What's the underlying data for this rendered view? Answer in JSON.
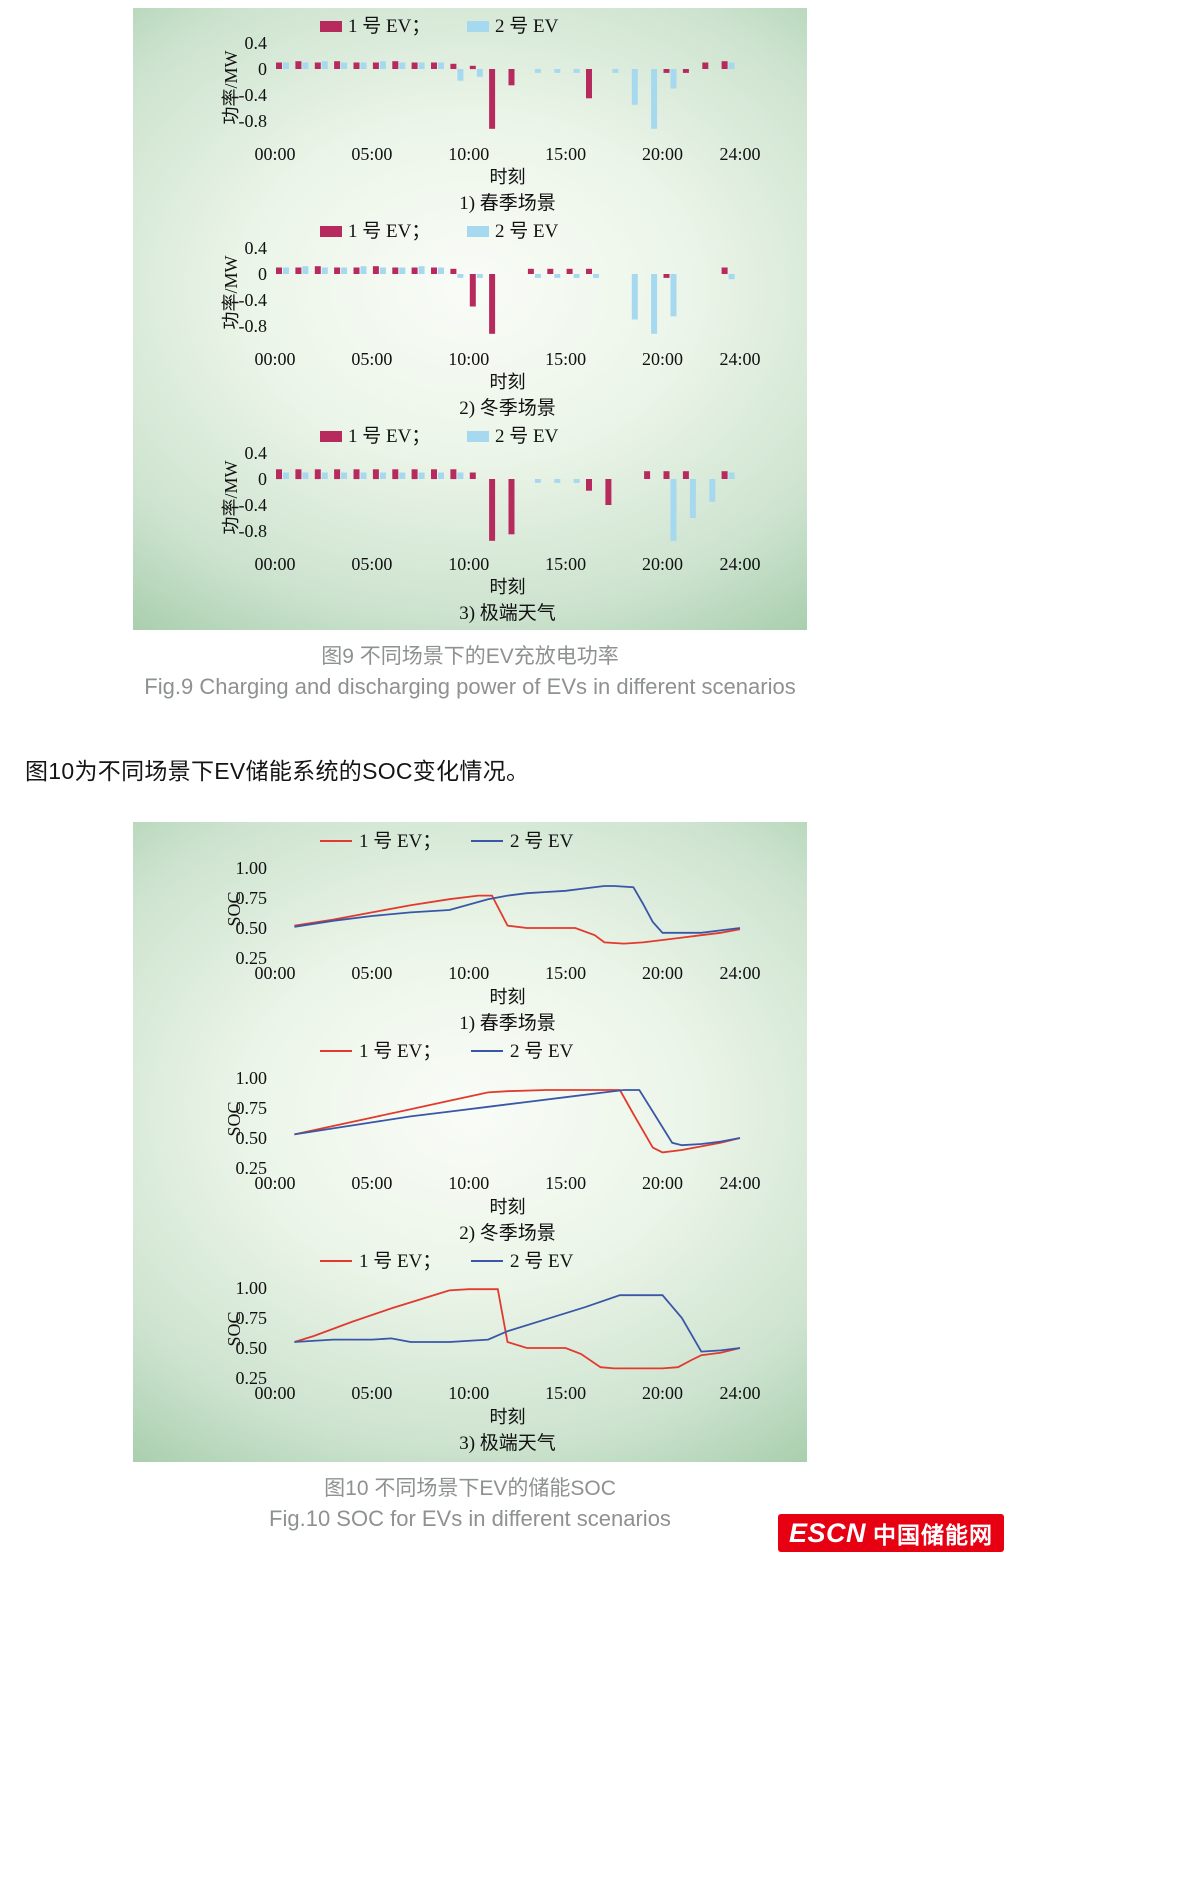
{
  "figure9": {
    "caption_zh": "图9  不同场景下的EV充放电功率",
    "caption_en": "Fig.9  Charging and discharging power of EVs in different scenarios"
  },
  "body_text": "图10为不同场景下EV储能系统的SOC变化情况。",
  "figure10": {
    "caption_zh": "图10  不同场景下EV的储能SOC",
    "caption_en": "Fig.10  SOC for EVs in different scenarios"
  },
  "logo": {
    "escn": "ESCN",
    "cn": "中国储能网",
    "color": "#e60012"
  },
  "chart_data": [
    {
      "id": "fig9-spring",
      "type": "bar",
      "title": "1) 春季场景",
      "xlabel": "时刻",
      "ylabel": "功率/MW",
      "ylim": [
        -1.0,
        0.5
      ],
      "yticks": [
        0.4,
        0,
        -0.4,
        -0.8
      ],
      "ytick_labels": [
        "0.4",
        "0",
        "-0.4",
        "-0.8"
      ],
      "xtick_hours": [
        0,
        5,
        10,
        15,
        20,
        24
      ],
      "xtick_labels": [
        "00:00",
        "05:00",
        "10:00",
        "15:00",
        "20:00",
        "24:00"
      ],
      "legend": [
        "1 号 EV；",
        "2 号 EV"
      ],
      "colors": [
        "#b72a5e",
        "#a6d9ef"
      ],
      "series": [
        {
          "name": "1号EV",
          "values": [
            0.1,
            0.12,
            0.1,
            0.12,
            0.1,
            0.1,
            0.12,
            0.1,
            0.1,
            0.08,
            0.05,
            -0.92,
            -0.25,
            0,
            0,
            0,
            -0.45,
            0,
            0,
            0,
            -0.06,
            -0.06,
            0.1,
            0.12
          ]
        },
        {
          "name": "2号EV",
          "values": [
            0.1,
            0.1,
            0.12,
            0.1,
            0.1,
            0.12,
            0.1,
            0.1,
            0.1,
            -0.18,
            -0.12,
            0,
            0,
            -0.06,
            -0.06,
            -0.06,
            0,
            -0.06,
            -0.55,
            -0.92,
            -0.3,
            0,
            0,
            0.1
          ]
        }
      ]
    },
    {
      "id": "fig9-winter",
      "type": "bar",
      "title": "2) 冬季场景",
      "xlabel": "时刻",
      "ylabel": "功率/MW",
      "ylim": [
        -1.0,
        0.5
      ],
      "yticks": [
        0.4,
        0,
        -0.4,
        -0.8
      ],
      "ytick_labels": [
        "0.4",
        "0",
        "-0.4",
        "-0.8"
      ],
      "xtick_hours": [
        0,
        5,
        10,
        15,
        20,
        24
      ],
      "xtick_labels": [
        "00:00",
        "05:00",
        "10:00",
        "15:00",
        "20:00",
        "24:00"
      ],
      "legend": [
        "1 号 EV；",
        "2 号 EV"
      ],
      "colors": [
        "#b72a5e",
        "#a6d9ef"
      ],
      "series": [
        {
          "name": "1号EV",
          "values": [
            0.1,
            0.1,
            0.12,
            0.1,
            0.1,
            0.12,
            0.1,
            0.1,
            0.1,
            0.08,
            -0.5,
            -0.92,
            0,
            0.08,
            0.08,
            0.08,
            0.08,
            0,
            0,
            0,
            -0.06,
            0,
            0,
            0.1
          ]
        },
        {
          "name": "2号EV",
          "values": [
            0.1,
            0.12,
            0.1,
            0.1,
            0.12,
            0.1,
            0.1,
            0.12,
            0.1,
            -0.06,
            -0.06,
            0,
            0,
            -0.06,
            -0.06,
            -0.06,
            -0.06,
            0,
            -0.7,
            -0.92,
            -0.65,
            0,
            0,
            -0.08
          ]
        }
      ]
    },
    {
      "id": "fig9-extreme",
      "type": "bar",
      "title": "3) 极端天气",
      "xlabel": "时刻",
      "ylabel": "功率/MW",
      "ylim": [
        -1.0,
        0.5
      ],
      "yticks": [
        0.4,
        0,
        -0.4,
        -0.8
      ],
      "ytick_labels": [
        "0.4",
        "0",
        "-0.4",
        "-0.8"
      ],
      "xtick_hours": [
        0,
        5,
        10,
        15,
        20,
        24
      ],
      "xtick_labels": [
        "00:00",
        "05:00",
        "10:00",
        "15:00",
        "20:00",
        "24:00"
      ],
      "legend": [
        "1 号 EV；",
        "2 号 EV"
      ],
      "colors": [
        "#b72a5e",
        "#a6d9ef"
      ],
      "series": [
        {
          "name": "1号EV",
          "values": [
            0.15,
            0.15,
            0.15,
            0.15,
            0.15,
            0.15,
            0.15,
            0.15,
            0.15,
            0.15,
            0.1,
            -0.95,
            -0.85,
            0,
            0,
            0,
            -0.18,
            -0.4,
            0,
            0.12,
            0.12,
            0.12,
            0,
            0.12
          ]
        },
        {
          "name": "2号EV",
          "values": [
            0.1,
            0.1,
            0.1,
            0.1,
            0.1,
            0.1,
            0.1,
            0.1,
            0.1,
            0.1,
            0,
            0,
            0,
            -0.06,
            -0.06,
            -0.06,
            0,
            0,
            0,
            0,
            -0.95,
            -0.6,
            -0.35,
            0.1
          ]
        }
      ]
    },
    {
      "id": "fig10-spring",
      "type": "line",
      "title": "1) 春季场景",
      "xlabel": "时刻",
      "ylabel": "SOC",
      "ylim": [
        0.25,
        1.0
      ],
      "yticks": [
        1.0,
        0.75,
        0.5,
        0.25
      ],
      "ytick_labels": [
        "1.00",
        "0.75",
        "0.50",
        "0.25"
      ],
      "xtick_hours": [
        0,
        5,
        10,
        15,
        20,
        24
      ],
      "xtick_labels": [
        "00:00",
        "05:00",
        "10:00",
        "15:00",
        "20:00",
        "24:00"
      ],
      "legend": [
        "1 号 EV；",
        "2 号 EV"
      ],
      "colors": [
        "#e23a2e",
        "#3a57a7"
      ],
      "series": [
        {
          "name": "1号EV",
          "x": [
            1,
            3,
            5,
            7,
            9,
            10.5,
            11.2,
            12,
            13,
            14,
            15.5,
            16.5,
            17,
            18,
            19,
            20,
            21,
            22,
            23,
            24
          ],
          "y": [
            0.52,
            0.57,
            0.63,
            0.69,
            0.74,
            0.77,
            0.77,
            0.52,
            0.5,
            0.5,
            0.5,
            0.44,
            0.38,
            0.37,
            0.38,
            0.4,
            0.42,
            0.44,
            0.46,
            0.49
          ]
        },
        {
          "name": "2号EV",
          "x": [
            1,
            3,
            5,
            7,
            9,
            11,
            12,
            13,
            14,
            15,
            16,
            17,
            17.5,
            18.5,
            19,
            19.5,
            20,
            21,
            22,
            23,
            24
          ],
          "y": [
            0.51,
            0.56,
            0.6,
            0.63,
            0.65,
            0.74,
            0.77,
            0.79,
            0.8,
            0.81,
            0.83,
            0.85,
            0.85,
            0.84,
            0.7,
            0.55,
            0.46,
            0.46,
            0.46,
            0.48,
            0.5
          ]
        }
      ]
    },
    {
      "id": "fig10-winter",
      "type": "line",
      "title": "2) 冬季场景",
      "xlabel": "时刻",
      "ylabel": "SOC",
      "ylim": [
        0.25,
        1.0
      ],
      "yticks": [
        1.0,
        0.75,
        0.5,
        0.25
      ],
      "ytick_labels": [
        "1.00",
        "0.75",
        "0.50",
        "0.25"
      ],
      "xtick_hours": [
        0,
        5,
        10,
        15,
        20,
        24
      ],
      "xtick_labels": [
        "00:00",
        "05:00",
        "10:00",
        "15:00",
        "20:00",
        "24:00"
      ],
      "legend": [
        "1 号 EV；",
        "2 号 EV"
      ],
      "colors": [
        "#e23a2e",
        "#3a57a7"
      ],
      "series": [
        {
          "name": "1号EV",
          "x": [
            1,
            3,
            5,
            7,
            9,
            11,
            12,
            14,
            16,
            17.8,
            18.5,
            19.5,
            20,
            21,
            22,
            23,
            24
          ],
          "y": [
            0.53,
            0.6,
            0.67,
            0.74,
            0.81,
            0.88,
            0.89,
            0.9,
            0.9,
            0.9,
            0.7,
            0.42,
            0.38,
            0.4,
            0.43,
            0.46,
            0.5
          ]
        },
        {
          "name": "2号EV",
          "x": [
            1,
            3,
            5,
            7,
            9,
            11,
            13,
            15,
            17,
            18,
            18.8,
            19.5,
            20.5,
            21,
            22,
            23,
            24
          ],
          "y": [
            0.53,
            0.58,
            0.63,
            0.68,
            0.72,
            0.76,
            0.8,
            0.84,
            0.88,
            0.9,
            0.9,
            0.72,
            0.46,
            0.44,
            0.45,
            0.47,
            0.5
          ]
        }
      ]
    },
    {
      "id": "fig10-extreme",
      "type": "line",
      "title": "3) 极端天气",
      "xlabel": "时刻",
      "ylabel": "SOC",
      "ylim": [
        0.25,
        1.0
      ],
      "yticks": [
        1.0,
        0.75,
        0.5,
        0.25
      ],
      "ytick_labels": [
        "1.00",
        "0.75",
        "0.50",
        "0.25"
      ],
      "xtick_hours": [
        0,
        5,
        10,
        15,
        20,
        24
      ],
      "xtick_labels": [
        "00:00",
        "05:00",
        "10:00",
        "15:00",
        "20:00",
        "24:00"
      ],
      "legend": [
        "1 号 EV；",
        "2 号 EV"
      ],
      "colors": [
        "#e23a2e",
        "#3a57a7"
      ],
      "series": [
        {
          "name": "1号EV",
          "x": [
            1,
            2,
            4,
            6,
            8,
            9,
            10,
            11.5,
            12,
            13,
            15,
            15.8,
            16.8,
            17.5,
            19,
            20,
            20.8,
            21.5,
            22,
            23,
            24
          ],
          "y": [
            0.55,
            0.6,
            0.72,
            0.83,
            0.93,
            0.98,
            0.99,
            0.99,
            0.55,
            0.5,
            0.5,
            0.45,
            0.34,
            0.33,
            0.33,
            0.33,
            0.34,
            0.4,
            0.44,
            0.46,
            0.5
          ]
        },
        {
          "name": "2号EV",
          "x": [
            1,
            3,
            5,
            6,
            7,
            9,
            11,
            12,
            14,
            16,
            17.8,
            19,
            20,
            21,
            22,
            23,
            24
          ],
          "y": [
            0.55,
            0.57,
            0.57,
            0.58,
            0.55,
            0.55,
            0.57,
            0.64,
            0.74,
            0.84,
            0.94,
            0.94,
            0.94,
            0.75,
            0.47,
            0.48,
            0.5
          ]
        }
      ]
    }
  ]
}
